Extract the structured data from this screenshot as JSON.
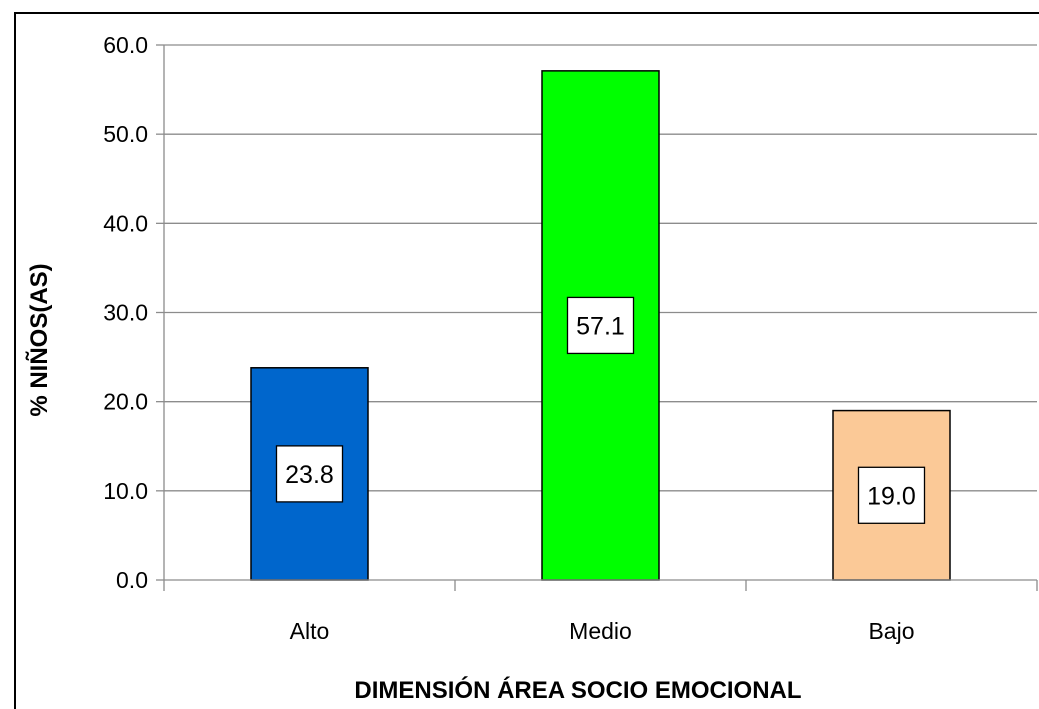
{
  "chart_data": {
    "type": "bar",
    "categories": [
      "Alto",
      "Medio",
      "Bajo"
    ],
    "values": [
      23.8,
      57.1,
      19.0
    ],
    "value_labels": [
      "23.8",
      "57.1",
      "19.0"
    ],
    "colors": [
      "#0066cc",
      "#00ff00",
      "#fbc997"
    ],
    "xlabel": "DIMENSIÓN ÁREA SOCIO EMOCIONAL",
    "ylabel": "% NIÑOS(AS)",
    "ylim": [
      0,
      60
    ],
    "yticks": [
      "0.0",
      "10.0",
      "20.0",
      "30.0",
      "40.0",
      "50.0",
      "60.0"
    ],
    "grid": true,
    "legend": "none"
  }
}
